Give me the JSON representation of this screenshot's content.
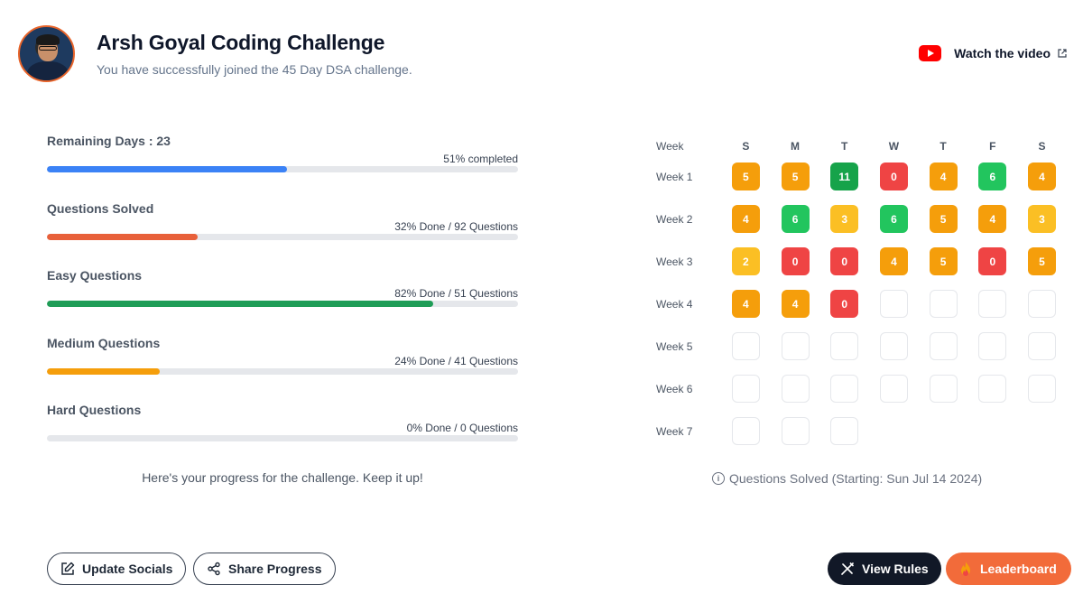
{
  "header": {
    "title": "Arsh Goyal Coding Challenge",
    "subtitle": "You have successfully joined the 45 Day DSA challenge.",
    "watch_label": "Watch the video"
  },
  "progress": {
    "items": [
      {
        "label": "Remaining Days : 23",
        "stat": "51% completed",
        "percent": 51,
        "color": "#3b82f6"
      },
      {
        "label": "Questions Solved",
        "stat": "32% Done / 92 Questions",
        "percent": 32,
        "color": "#e8603a"
      },
      {
        "label": "Easy Questions",
        "stat": "82% Done / 51 Questions",
        "percent": 82,
        "color": "#1f9d57"
      },
      {
        "label": "Medium Questions",
        "stat": "24% Done / 41 Questions",
        "percent": 24,
        "color": "#f59e0b"
      },
      {
        "label": "Hard Questions",
        "stat": "0% Done / 0 Questions",
        "percent": 0,
        "color": "#ef4444"
      }
    ],
    "encouragement": "Here's your progress for the challenge. Keep it up!"
  },
  "calendar": {
    "week_header": "Week",
    "days": [
      "S",
      "M",
      "T",
      "W",
      "T",
      "F",
      "S"
    ],
    "weeks": [
      {
        "label": "Week 1",
        "values": [
          "5",
          "5",
          "11",
          "0",
          "4",
          "6",
          "4"
        ]
      },
      {
        "label": "Week 2",
        "values": [
          "4",
          "6",
          "3",
          "6",
          "5",
          "4",
          "3"
        ]
      },
      {
        "label": "Week 3",
        "values": [
          "2",
          "0",
          "0",
          "4",
          "5",
          "0",
          "5"
        ]
      },
      {
        "label": "Week 4",
        "values": [
          "4",
          "4",
          "0",
          "",
          "",
          "",
          ""
        ]
      },
      {
        "label": "Week 5",
        "values": [
          "",
          "",
          "",
          "",
          "",
          "",
          ""
        ]
      },
      {
        "label": "Week 6",
        "values": [
          "",
          "",
          "",
          "",
          "",
          "",
          ""
        ]
      },
      {
        "label": "Week 7",
        "values": [
          "",
          "",
          ""
        ]
      }
    ],
    "note": "Questions Solved (Starting: Sun Jul 14 2024)",
    "colors": {
      "zero": "#ef4444",
      "low": "#fbbf24",
      "mid": "#f59e0b",
      "high": "#22c55e",
      "top": "#16a34a"
    }
  },
  "buttons": {
    "update_socials": "Update Socials",
    "share_progress": "Share Progress",
    "view_rules": "View Rules",
    "leaderboard": "Leaderboard"
  }
}
